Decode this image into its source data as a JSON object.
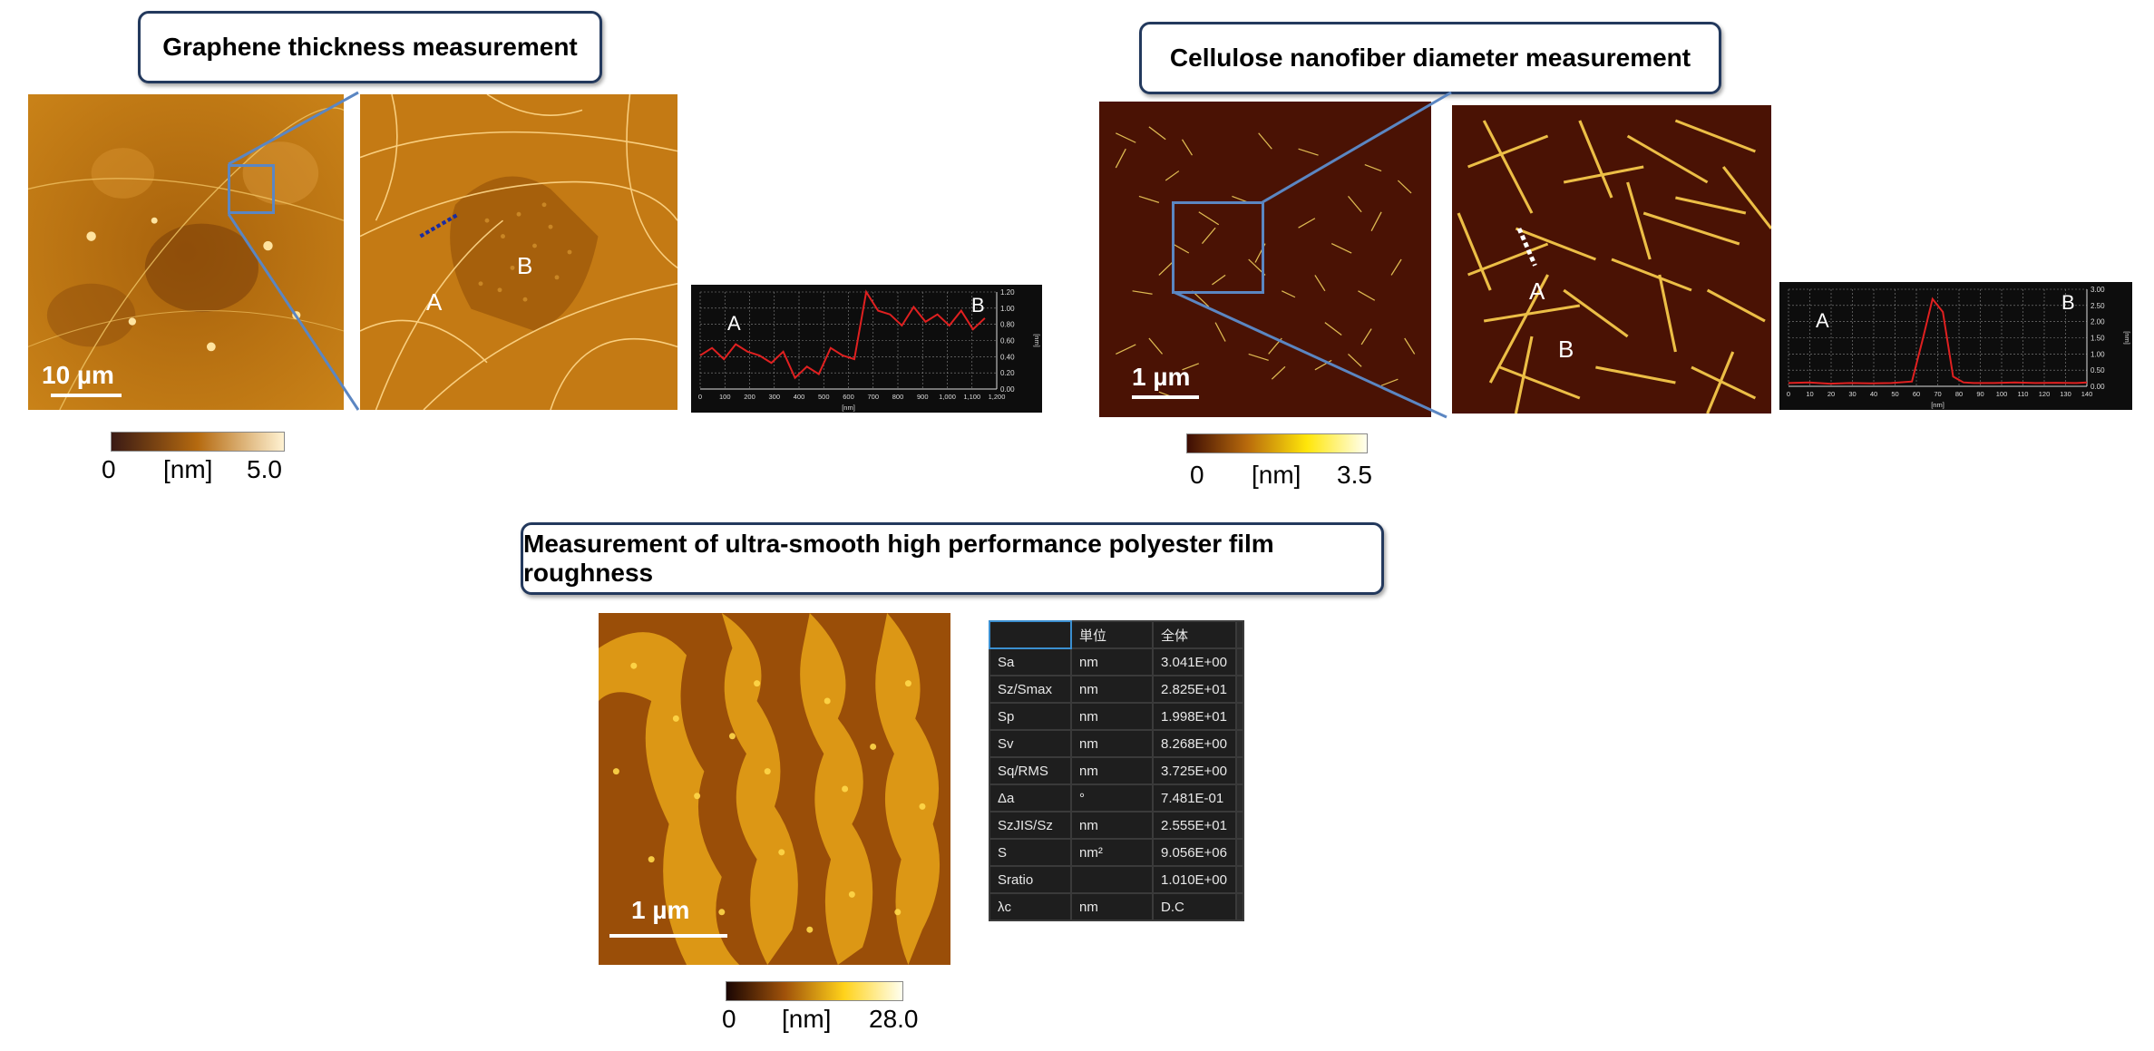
{
  "panels": {
    "graphene": {
      "title": "Graphene thickness measurement",
      "scale_bar": "10 µm",
      "point_a": "A",
      "point_b": "B",
      "colorbar": {
        "min": "0",
        "unit": "[nm]",
        "max": "5.0",
        "colors": [
          "#3a1a14",
          "#b56a10",
          "#fff2d2"
        ]
      },
      "profile": {
        "label_a": "A",
        "label_b": "B",
        "x_ticks": [
          "0",
          "100",
          "200",
          "300",
          "400",
          "500",
          "600",
          "700",
          "800",
          "900",
          "1,000",
          "1,100",
          "1,200"
        ],
        "y_ticks": [
          "0.00",
          "0.20",
          "0.40",
          "0.60",
          "0.80",
          "1.00",
          "1.20"
        ],
        "x_unit": "[nm]",
        "y_unit": "[nm]"
      }
    },
    "cellulose": {
      "title": "Cellulose nanofiber diameter measurement",
      "scale_bar": "1 µm",
      "point_a": "A",
      "point_b": "B",
      "colorbar": {
        "min": "0",
        "unit": "[nm]",
        "max": "3.5",
        "colors": [
          "#3d0d04",
          "#b86a0c",
          "#ffe60a",
          "#fffff0"
        ]
      },
      "profile": {
        "label_a": "A",
        "label_b": "B",
        "x_ticks": [
          "0",
          "10",
          "20",
          "30",
          "40",
          "50",
          "60",
          "70",
          "80",
          "90",
          "100",
          "110",
          "120",
          "130",
          "140"
        ],
        "y_ticks": [
          "0.00",
          "0.50",
          "1.00",
          "1.50",
          "2.00",
          "2.50",
          "3.00"
        ],
        "x_unit": "[nm]",
        "y_unit": "[nm]"
      }
    },
    "polyester": {
      "title": "Measurement of ultra-smooth high performance polyester film roughness",
      "scale_bar": "1 µm",
      "colorbar": {
        "min": "0",
        "unit": "[nm]",
        "max": "28.0",
        "colors": [
          "#1a0603",
          "#a0520a",
          "#ffd21a",
          "#fffff0"
        ]
      },
      "table": {
        "headers": [
          "",
          "単位",
          "全体"
        ],
        "rows": [
          [
            "Sa",
            "nm",
            "3.041E+00"
          ],
          [
            "Sz/Smax",
            "nm",
            "2.825E+01"
          ],
          [
            "Sp",
            "nm",
            "1.998E+01"
          ],
          [
            "Sv",
            "nm",
            "8.268E+00"
          ],
          [
            "Sq/RMS",
            "nm",
            "3.725E+00"
          ],
          [
            "Δa",
            "°",
            "7.481E-01"
          ],
          [
            "SzJIS/Sz",
            "nm",
            "2.555E+01"
          ],
          [
            "S",
            "nm²",
            "9.056E+06"
          ],
          [
            "Sratio",
            "",
            "1.010E+00"
          ],
          [
            "λc",
            "nm",
            "D.C"
          ]
        ]
      }
    }
  },
  "profile_series": {
    "graphene": {
      "x": [
        0,
        50,
        100,
        150,
        200,
        250,
        300,
        350,
        400,
        450,
        500,
        550,
        600,
        650,
        700,
        750,
        800,
        850,
        900,
        950,
        1000,
        1050,
        1100,
        1150,
        1200
      ],
      "y": [
        0.45,
        0.55,
        0.4,
        0.6,
        0.5,
        0.45,
        0.35,
        0.5,
        0.15,
        0.3,
        0.2,
        0.55,
        0.45,
        0.4,
        1.3,
        1.05,
        1.0,
        0.85,
        1.1,
        0.9,
        1.0,
        0.85,
        1.05,
        0.8,
        0.95
      ],
      "ylim": [
        0,
        1.3
      ],
      "xlim": [
        0,
        1250
      ]
    },
    "cellulose": {
      "x": [
        0,
        10,
        20,
        30,
        40,
        50,
        60,
        65,
        70,
        75,
        80,
        85,
        90,
        100,
        110,
        120,
        130,
        140,
        145
      ],
      "y": [
        0.1,
        0.12,
        0.08,
        0.1,
        0.09,
        0.1,
        0.15,
        1.4,
        2.7,
        2.3,
        0.3,
        0.12,
        0.1,
        0.1,
        0.12,
        0.1,
        0.11,
        0.1,
        0.12
      ],
      "ylim": [
        0,
        3.0
      ],
      "xlim": [
        0,
        145
      ]
    }
  }
}
